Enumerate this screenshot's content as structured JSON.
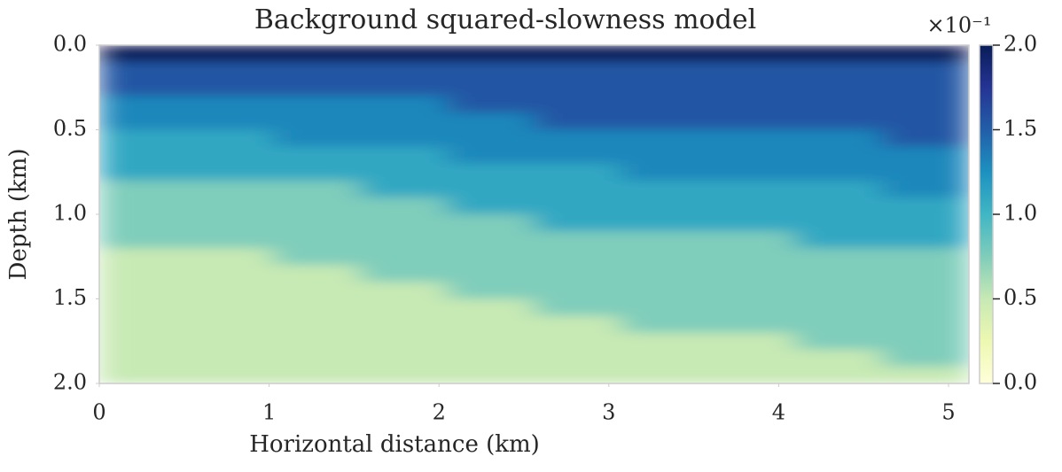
{
  "chart_data": {
    "type": "heatmap",
    "title": "Background squared-slowness model",
    "x_label": "Horizontal distance (km)",
    "y_label": "Depth (km)",
    "x": [
      0.256,
      0.768,
      1.28,
      1.792,
      2.304,
      2.816,
      3.328,
      3.84,
      4.352,
      4.864
    ],
    "y": [
      0.05,
      0.15,
      0.25,
      0.35,
      0.45,
      0.55,
      0.65,
      0.75,
      0.85,
      0.95,
      1.05,
      1.15,
      1.25,
      1.35,
      1.45,
      1.55,
      1.65,
      1.75,
      1.85,
      1.95
    ],
    "values": [
      [
        2,
        1.55,
        1.55,
        1.3,
        1.3,
        1.1,
        1.1,
        1.1,
        0.75,
        0.75,
        0.75,
        0.75,
        0.5,
        0.5,
        0.5,
        0.5,
        0.5,
        0.5,
        0.5,
        0.5
      ],
      [
        2,
        1.55,
        1.55,
        1.3,
        1.3,
        1.1,
        1.1,
        1.1,
        0.75,
        0.75,
        0.75,
        0.75,
        0.5,
        0.5,
        0.5,
        0.5,
        0.5,
        0.5,
        0.5,
        0.5
      ],
      [
        2,
        1.55,
        1.55,
        1.3,
        1.3,
        1.3,
        1.1,
        1.1,
        0.75,
        0.75,
        0.75,
        0.75,
        0.75,
        0.5,
        0.5,
        0.5,
        0.5,
        0.5,
        0.5,
        0.5
      ],
      [
        2,
        1.55,
        1.55,
        1.3,
        1.3,
        1.3,
        1.1,
        1.1,
        1.1,
        0.75,
        0.75,
        0.75,
        0.75,
        0.75,
        0.5,
        0.5,
        0.5,
        0.5,
        0.5,
        0.5
      ],
      [
        2,
        1.55,
        1.55,
        1.55,
        1.3,
        1.3,
        1.3,
        1.1,
        1.1,
        1.1,
        0.75,
        0.75,
        0.75,
        0.75,
        0.75,
        0.5,
        0.5,
        0.5,
        0.5,
        0.5
      ],
      [
        2,
        1.55,
        1.55,
        1.55,
        1.55,
        1.3,
        1.3,
        1.1,
        1.1,
        1.1,
        1.1,
        0.75,
        0.75,
        0.75,
        0.75,
        0.75,
        0.5,
        0.5,
        0.5,
        0.5
      ],
      [
        2,
        1.55,
        1.55,
        1.55,
        1.55,
        1.3,
        1.3,
        1.3,
        1.1,
        1.1,
        1.1,
        0.75,
        0.75,
        0.75,
        0.75,
        0.75,
        0.75,
        0.5,
        0.5,
        0.5
      ],
      [
        2,
        1.55,
        1.55,
        1.55,
        1.55,
        1.3,
        1.3,
        1.3,
        1.1,
        1.1,
        1.1,
        0.75,
        0.75,
        0.75,
        0.75,
        0.75,
        0.75,
        0.5,
        0.5,
        0.5
      ],
      [
        2,
        1.55,
        1.55,
        1.55,
        1.55,
        1.3,
        1.3,
        1.3,
        1.1,
        1.1,
        1.1,
        1.1,
        0.75,
        0.75,
        0.75,
        0.75,
        0.75,
        0.75,
        0.5,
        0.5
      ],
      [
        2,
        1.55,
        1.55,
        1.55,
        1.55,
        1.55,
        1.3,
        1.3,
        1.3,
        1.1,
        1.1,
        1.1,
        0.75,
        0.75,
        0.75,
        0.75,
        0.75,
        0.75,
        0.75,
        0.5
      ]
    ],
    "xlim": [
      0,
      5.12
    ],
    "xticks": [
      0,
      1,
      2,
      3,
      4,
      5
    ],
    "ylim": [
      0,
      2
    ],
    "y_inverted": true,
    "yticks": [
      {
        "value": 0,
        "label": "0.0"
      },
      0.5,
      {
        "value": 1,
        "label": "1.0"
      },
      1.5,
      {
        "value": 2,
        "label": "2.0"
      }
    ],
    "clim": [
      0,
      2
    ],
    "colorbar_ticks": [
      {
        "value": 0,
        "label": "0.0"
      },
      0.5,
      {
        "value": 1,
        "label": "1.0"
      },
      1.5,
      {
        "value": 2,
        "label": "2.0"
      }
    ],
    "colorbar_offset_label": "×10⁻¹",
    "colormap": [
      "#ffffd9",
      "#edf8b1",
      "#c7e9b4",
      "#7fcdbb",
      "#41b6c4",
      "#1d91c0",
      "#225ea8",
      "#253494",
      "#081d58"
    ]
  }
}
